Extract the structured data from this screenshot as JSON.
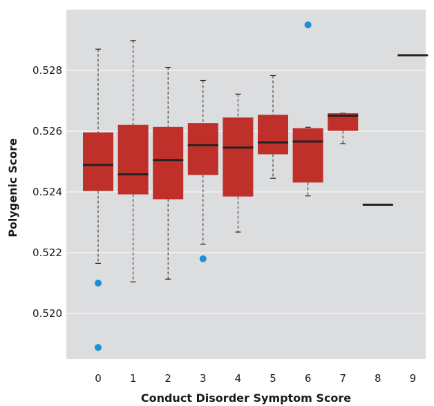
{
  "chart_data": {
    "type": "box",
    "title": "",
    "xlabel": "Conduct Disorder Symptom Score",
    "ylabel": "Polygenic Score",
    "categories": [
      "0",
      "1",
      "2",
      "3",
      "4",
      "5",
      "6",
      "7",
      "8",
      "9"
    ],
    "y_ticks": [
      "0.520",
      "0.522",
      "0.524",
      "0.526",
      "0.528"
    ],
    "y_tick_values": [
      0.52,
      0.522,
      0.524,
      0.526,
      0.528
    ],
    "ylim": [
      0.5185,
      0.53
    ],
    "grid": true,
    "colors": {
      "panel": "#dcdddf",
      "grid": "#ffffff",
      "box": "#c0302a",
      "median": "#222222",
      "outlier": "#1c8fd6",
      "whisker": "#222222"
    },
    "boxes": [
      {
        "category": "0",
        "whisker_low": 0.52165,
        "q1": 0.52403,
        "median": 0.52489,
        "q3": 0.52596,
        "whisker_high": 0.5287,
        "outliers": [
          0.521,
          0.51888
        ]
      },
      {
        "category": "1",
        "whisker_low": 0.52104,
        "q1": 0.52392,
        "median": 0.52458,
        "q3": 0.52621,
        "whisker_high": 0.52898,
        "outliers": []
      },
      {
        "category": "2",
        "whisker_low": 0.52113,
        "q1": 0.52376,
        "median": 0.52505,
        "q3": 0.52614,
        "whisker_high": 0.5281,
        "outliers": []
      },
      {
        "category": "3",
        "whisker_low": 0.52228,
        "q1": 0.52456,
        "median": 0.52554,
        "q3": 0.52627,
        "whisker_high": 0.52767,
        "outliers": [
          0.5218
        ]
      },
      {
        "category": "4",
        "whisker_low": 0.52268,
        "q1": 0.52385,
        "median": 0.52546,
        "q3": 0.52645,
        "whisker_high": 0.52722,
        "outliers": []
      },
      {
        "category": "5",
        "whisker_low": 0.52445,
        "q1": 0.52524,
        "median": 0.52563,
        "q3": 0.52654,
        "whisker_high": 0.52783,
        "outliers": []
      },
      {
        "category": "6",
        "whisker_low": 0.52387,
        "q1": 0.52431,
        "median": 0.52566,
        "q3": 0.5261,
        "whisker_high": 0.52613,
        "outliers": [
          0.5295
        ]
      },
      {
        "category": "7",
        "whisker_low": 0.52559,
        "q1": 0.52601,
        "median": 0.52651,
        "q3": 0.52659,
        "whisker_high": 0.52659,
        "outliers": []
      },
      {
        "category": "8",
        "whisker_low": 0.52358,
        "q1": 0.52358,
        "median": 0.52358,
        "q3": 0.52358,
        "whisker_high": 0.52358,
        "outliers": []
      },
      {
        "category": "9",
        "whisker_low": 0.5285,
        "q1": 0.5285,
        "median": 0.5285,
        "q3": 0.5285,
        "whisker_high": 0.5285,
        "outliers": []
      }
    ]
  }
}
